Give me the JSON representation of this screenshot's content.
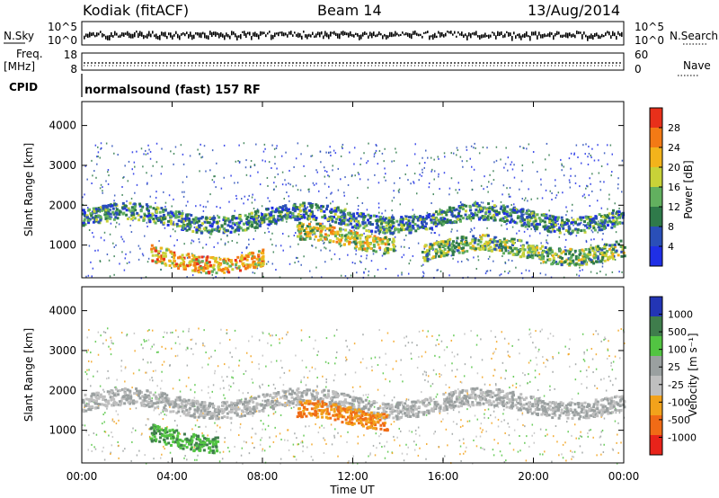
{
  "header": {
    "radar": "Kodiak (fitACF)",
    "beam": "Beam 14",
    "date": "13/Aug/2014"
  },
  "panels": {
    "noise": {
      "left_label": "N.Sky",
      "right_label": "N.Search",
      "left_ticks": [
        "10^5",
        "10^0"
      ],
      "right_ticks": [
        "10^5",
        "10^0"
      ]
    },
    "freq": {
      "left_label_1": "Freq.",
      "left_label_2": "[MHz]",
      "right_label": "Nave",
      "left_ticks": [
        "18",
        "8"
      ],
      "right_ticks": [
        "60",
        "0"
      ]
    },
    "cpid": {
      "label": "CPID",
      "text": "normalsound (fast) 157 RF"
    }
  },
  "chart_data": [
    {
      "type": "heatmap",
      "title": "",
      "parameter": "power",
      "xlabel": "",
      "ylabel": "Slant Range [km]",
      "y_ticks": [
        "1000",
        "2000",
        "3000",
        "4000"
      ],
      "ylim": [
        180,
        4600
      ],
      "colorbar": {
        "label": "Power [dB]",
        "ticks": [
          "4",
          "8",
          "12",
          "16",
          "20",
          "24",
          "28"
        ],
        "range": [
          0,
          30
        ],
        "colors": [
          "#1f2fe6",
          "#2a4fb8",
          "#2f7a4a",
          "#62b05f",
          "#c8d238",
          "#f3b31b",
          "#f37a15",
          "#e8301a"
        ]
      },
      "features": [
        {
          "name": "band-A",
          "t_start_h": 0.0,
          "t_end_h": 24.0,
          "range_km": 1700,
          "level_db": 8
        },
        {
          "name": "ionospheric-E-echo",
          "t_start_h": 3.0,
          "t_end_h": 8.0,
          "range_km": 700,
          "level_db": 22
        },
        {
          "name": "mid-day-patch",
          "t_start_h": 9.5,
          "t_end_h": 13.8,
          "range_km": 1200,
          "level_db": 18
        },
        {
          "name": "evening-band",
          "t_start_h": 15.0,
          "t_end_h": 24.0,
          "range_km": 900,
          "level_db": 14
        }
      ]
    },
    {
      "type": "heatmap",
      "title": "",
      "parameter": "velocity",
      "xlabel": "Time UT",
      "ylabel": "Slant Range [km]",
      "x_ticks": [
        "00:00",
        "04:00",
        "08:00",
        "12:00",
        "16:00",
        "20:00",
        "00:00"
      ],
      "y_ticks": [
        "1000",
        "2000",
        "3000",
        "4000"
      ],
      "ylim": [
        180,
        4600
      ],
      "colorbar": {
        "label": "Velocity [m s⁻¹]",
        "ticks": [
          "1000",
          "500",
          "100",
          "25",
          "-25",
          "-100",
          "-500",
          "-1000"
        ],
        "range": [
          -1200,
          1200
        ],
        "colors": [
          "#2335b5",
          "#3f7d4c",
          "#52c442",
          "#9aa0a0",
          "#bfbfbf",
          "#f2a21b",
          "#f06b16",
          "#e8231a"
        ]
      },
      "features": [
        {
          "name": "ground-scatter",
          "t_start_h": 0.0,
          "t_end_h": 24.0,
          "range_km": 1700,
          "velocity": 0
        },
        {
          "name": "receding-echo",
          "t_start_h": 3.0,
          "t_end_h": 6.0,
          "range_km": 850,
          "velocity": 150
        },
        {
          "name": "approaching-patch",
          "t_start_h": 9.5,
          "t_end_h": 13.5,
          "range_km": 1400,
          "velocity": -300
        }
      ]
    }
  ]
}
